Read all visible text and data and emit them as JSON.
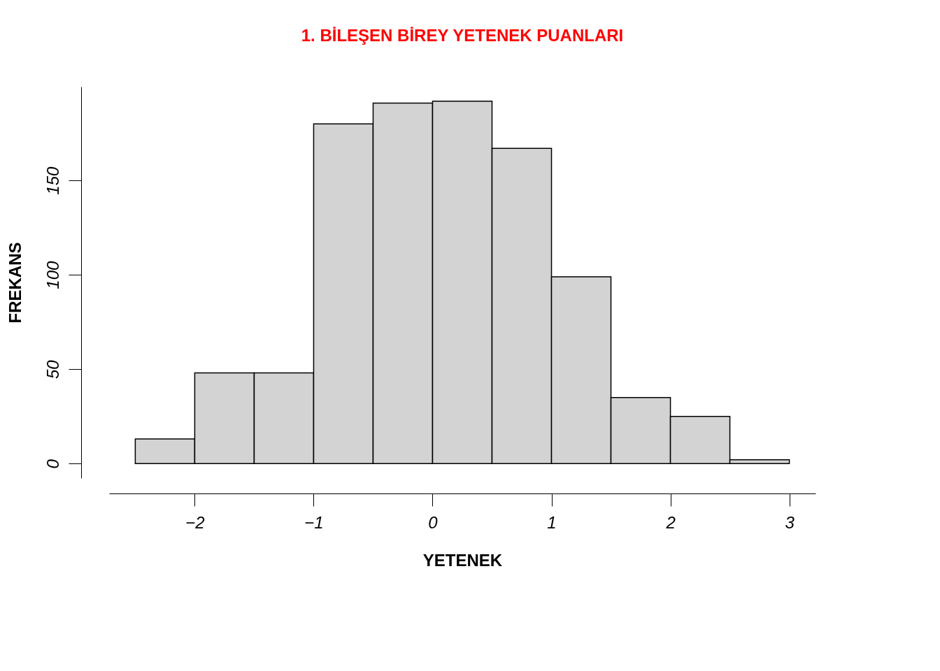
{
  "chart_data": {
    "type": "histogram",
    "title": "1. BİLEŞEN BİREY YETENEK PUANLARI",
    "xlabel": "YETENEK",
    "ylabel": "FREKANS",
    "bins": [
      -2.5,
      -2,
      -1.5,
      -1,
      -0.5,
      0,
      0.5,
      1,
      1.5,
      2,
      2.5,
      3
    ],
    "values": [
      13,
      48,
      48,
      180,
      191,
      192,
      167,
      99,
      35,
      25,
      2
    ],
    "color": "#d3d3d3",
    "xlim": [
      -2.72,
      3.22
    ],
    "xticks": [
      -2,
      -1,
      0,
      1,
      2,
      3
    ],
    "ylim": [
      -7.7,
      199.7
    ],
    "yticks": [
      0,
      50,
      100,
      150
    ],
    "grid": false
  }
}
